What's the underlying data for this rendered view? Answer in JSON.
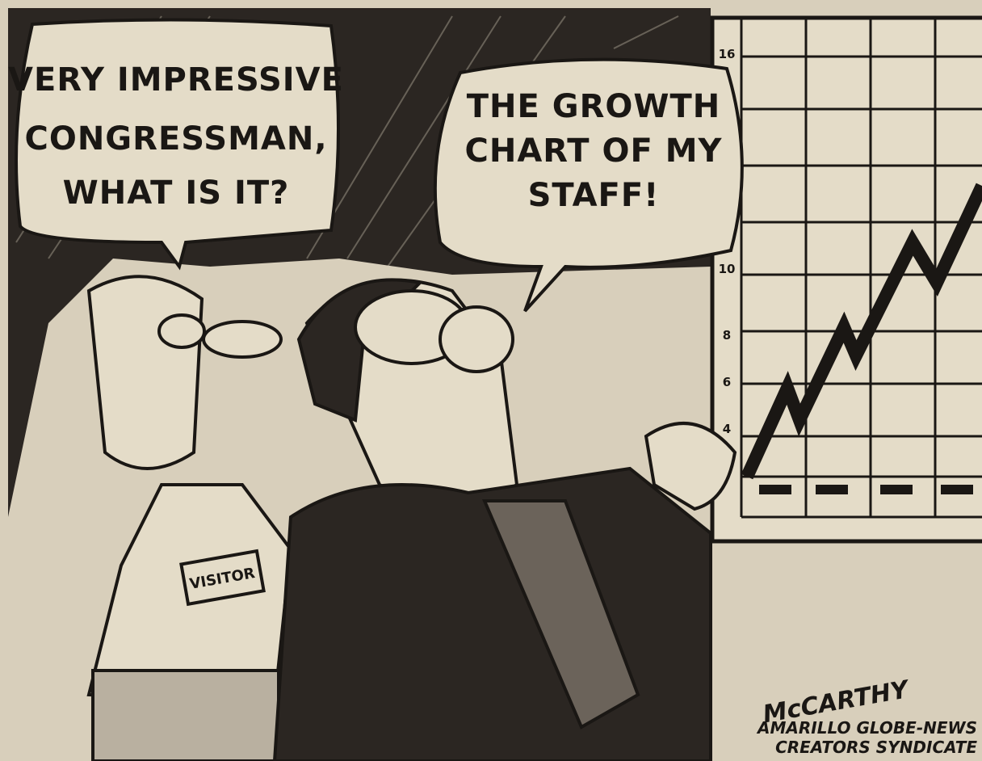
{
  "speech_bubbles": [
    {
      "lines": [
        "VERY IMPRESSIVE",
        "CONGRESSMAN,",
        "WHAT IS IT?"
      ]
    },
    {
      "lines": [
        "THE GROWTH",
        "CHART OF MY",
        "STAFF!"
      ]
    }
  ],
  "wall_chart": {
    "axis_labels": [
      "16",
      "10",
      "8",
      "6",
      "4"
    ]
  },
  "badge": "VISITOR",
  "signature": "McCARTHY",
  "credits": [
    "AMARILLO GLOBE-NEWS",
    "CREATORS SYNDICATE"
  ]
}
